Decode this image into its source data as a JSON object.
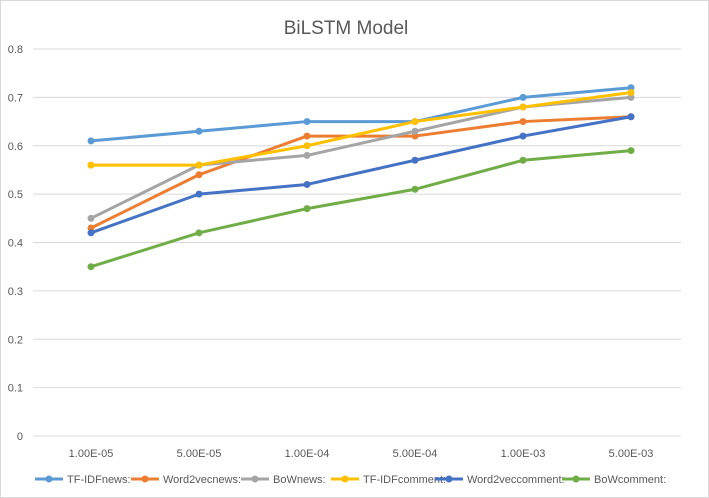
{
  "chart_data": {
    "type": "line",
    "title": "BiLSTM Model",
    "xlabel": "",
    "ylabel": "",
    "categories": [
      "1.00E-05",
      "5.00E-05",
      "1.00E-04",
      "5.00E-04",
      "1.00E-03",
      "5.00E-03"
    ],
    "ylim": [
      0,
      0.8
    ],
    "yticks": [
      "0",
      "0.1",
      "0.2",
      "0.3",
      "0.4",
      "0.5",
      "0.6",
      "0.7",
      "0.8"
    ],
    "grid": true,
    "legend_position": "bottom",
    "series": [
      {
        "name": "TF-IDFnews:",
        "color": "#5B9BD5",
        "values": [
          0.61,
          0.63,
          0.65,
          0.65,
          0.7,
          0.72
        ]
      },
      {
        "name": "Word2vecnews:",
        "color": "#ED7D31",
        "values": [
          0.43,
          0.54,
          0.62,
          0.62,
          0.65,
          0.66
        ]
      },
      {
        "name": "BoWnews:",
        "color": "#A5A5A5",
        "values": [
          0.45,
          0.56,
          0.58,
          0.63,
          0.68,
          0.7
        ]
      },
      {
        "name": "TF-IDFcomment:",
        "color": "#FFC000",
        "values": [
          0.56,
          0.56,
          0.6,
          0.65,
          0.68,
          0.71
        ]
      },
      {
        "name": "Word2veccomment:",
        "color": "#4472C4",
        "values": [
          0.42,
          0.5,
          0.52,
          0.57,
          0.62,
          0.66
        ]
      },
      {
        "name": "BoWcomment:",
        "color": "#70AD47",
        "values": [
          0.35,
          0.42,
          0.47,
          0.51,
          0.57,
          0.59
        ]
      }
    ]
  }
}
